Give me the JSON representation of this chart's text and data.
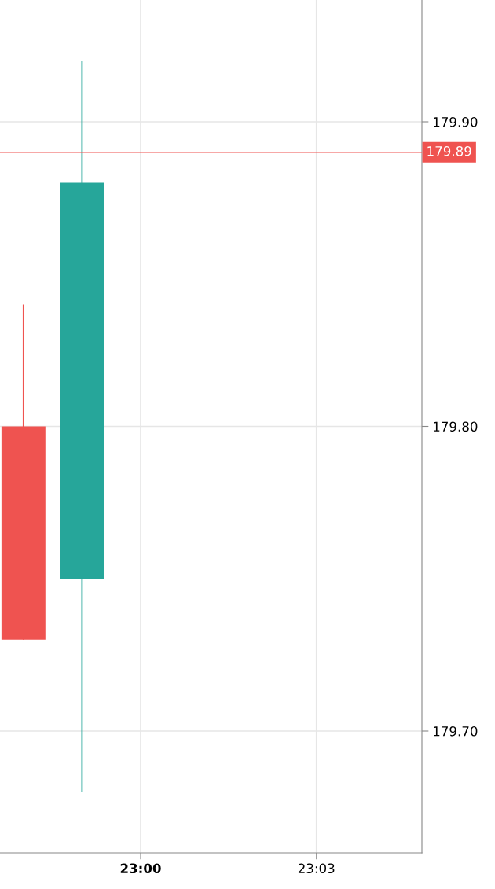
{
  "chart_data": {
    "type": "candlestick",
    "x": [
      22.966667,
      22.983333
    ],
    "ohlc": [
      [
        179.8,
        179.84,
        179.73,
        179.73
      ],
      [
        179.75,
        179.92,
        179.68,
        179.88
      ]
    ],
    "colors": [
      "#ef5350",
      "#26a69a"
    ],
    "xlim": [
      22.96,
      23.08
    ],
    "xticks": [
      {
        "value": 23.0,
        "label": "23:00"
      },
      {
        "value": 23.05,
        "label": "23:03"
      }
    ],
    "ylim": [
      179.66,
      179.94
    ],
    "yticks": [
      {
        "value": 179.7,
        "label": "179.70"
      },
      {
        "value": 179.8,
        "label": "179.80"
      },
      {
        "value": 179.9,
        "label": "179.90"
      }
    ],
    "ref_lines": [
      {
        "axis": "y",
        "value": 179.89,
        "label": "179.89",
        "color": "#ef5350"
      }
    ],
    "grid": true
  }
}
